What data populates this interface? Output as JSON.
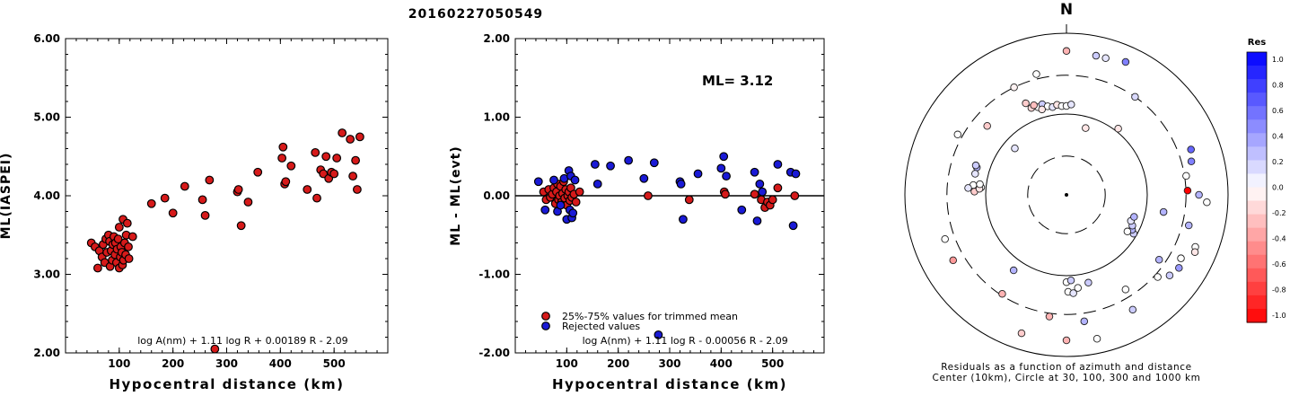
{
  "title": "20160227050549",
  "colors": {
    "accepted": "#d61a1a",
    "rejected": "#1a1ad6"
  },
  "chart_data": [
    {
      "type": "scatter",
      "ylabel": "ML(IASPEI)",
      "xlabel": "Hypocentral distance (km)",
      "xlim": [
        0,
        600
      ],
      "ylim": [
        2.0,
        6.0
      ],
      "xticks": [
        "100",
        "200",
        "300",
        "400",
        "500"
      ],
      "yticks": [
        "2.00",
        "3.00",
        "4.00",
        "5.00",
        "6.00"
      ],
      "formula": "log A(nm) + 1.11 log R + 0.00189 R - 2.09",
      "series": [
        {
          "color": "#d61a1a",
          "points": [
            [
              48,
              3.4
            ],
            [
              55,
              3.35
            ],
            [
              60,
              3.08
            ],
            [
              63,
              3.3
            ],
            [
              68,
              3.22
            ],
            [
              70,
              3.38
            ],
            [
              73,
              3.15
            ],
            [
              75,
              3.45
            ],
            [
              77,
              3.28
            ],
            [
              80,
              3.5
            ],
            [
              82,
              3.42
            ],
            [
              83,
              3.1
            ],
            [
              85,
              3.3
            ],
            [
              87,
              3.18
            ],
            [
              88,
              3.38
            ],
            [
              90,
              3.48
            ],
            [
              92,
              3.25
            ],
            [
              93,
              3.4
            ],
            [
              95,
              3.15
            ],
            [
              96,
              3.32
            ],
            [
              98,
              3.45
            ],
            [
              100,
              3.08
            ],
            [
              100,
              3.6
            ],
            [
              102,
              3.22
            ],
            [
              103,
              3.35
            ],
            [
              105,
              3.28
            ],
            [
              106,
              3.12
            ],
            [
              107,
              3.7
            ],
            [
              108,
              3.18
            ],
            [
              110,
              3.4
            ],
            [
              112,
              3.25
            ],
            [
              113,
              3.5
            ],
            [
              115,
              3.65
            ],
            [
              117,
              3.35
            ],
            [
              118,
              3.2
            ],
            [
              125,
              3.48
            ],
            [
              160,
              3.9
            ],
            [
              185,
              3.97
            ],
            [
              200,
              3.78
            ],
            [
              222,
              4.12
            ],
            [
              255,
              3.95
            ],
            [
              260,
              3.75
            ],
            [
              268,
              4.2
            ],
            [
              278,
              2.05
            ],
            [
              320,
              4.05
            ],
            [
              322,
              4.08
            ],
            [
              327,
              3.62
            ],
            [
              340,
              3.92
            ],
            [
              358,
              4.3
            ],
            [
              403,
              4.48
            ],
            [
              405,
              4.62
            ],
            [
              408,
              4.15
            ],
            [
              410,
              4.18
            ],
            [
              420,
              4.38
            ],
            [
              450,
              4.08
            ],
            [
              465,
              4.55
            ],
            [
              468,
              3.97
            ],
            [
              475,
              4.33
            ],
            [
              480,
              4.28
            ],
            [
              485,
              4.5
            ],
            [
              490,
              4.22
            ],
            [
              495,
              4.3
            ],
            [
              500,
              4.28
            ],
            [
              505,
              4.48
            ],
            [
              515,
              4.8
            ],
            [
              530,
              4.72
            ],
            [
              535,
              4.25
            ],
            [
              540,
              4.45
            ],
            [
              543,
              4.08
            ],
            [
              548,
              4.75
            ]
          ]
        }
      ]
    },
    {
      "type": "scatter",
      "ylabel": "ML - ML(evt)",
      "xlabel": "Hypocentral distance (km)",
      "xlim": [
        0,
        600
      ],
      "ylim": [
        -2.0,
        2.0
      ],
      "xticks": [
        "100",
        "200",
        "300",
        "400",
        "500"
      ],
      "yticks": [
        "-2.00",
        "-1.00",
        "0.00",
        "1.00",
        "2.00"
      ],
      "annotation": "ML= 3.12",
      "formula": "log A(nm) + 1.11 log R - 0.00056 R - 2.09",
      "legend": [
        "25%-75% values for trimmed mean",
        "Rejected values"
      ],
      "series": [
        {
          "name": "25%-75% values for trimmed mean",
          "color": "#d61a1a",
          "points": [
            [
              55,
              0.05
            ],
            [
              60,
              -0.05
            ],
            [
              65,
              0.08
            ],
            [
              68,
              -0.02
            ],
            [
              72,
              0.02
            ],
            [
              75,
              0.1
            ],
            [
              78,
              -0.1
            ],
            [
              80,
              0.05
            ],
            [
              82,
              0.15
            ],
            [
              84,
              -0.05
            ],
            [
              86,
              0.0
            ],
            [
              88,
              0.12
            ],
            [
              90,
              -0.08
            ],
            [
              92,
              0.03
            ],
            [
              94,
              0.18
            ],
            [
              96,
              -0.03
            ],
            [
              98,
              0.08
            ],
            [
              100,
              -0.12
            ],
            [
              102,
              0.0
            ],
            [
              104,
              0.05
            ],
            [
              106,
              -0.06
            ],
            [
              108,
              0.1
            ],
            [
              110,
              -0.02
            ],
            [
              114,
              0.02
            ],
            [
              118,
              -0.08
            ],
            [
              125,
              0.05
            ],
            [
              258,
              0.0
            ],
            [
              338,
              -0.05
            ],
            [
              406,
              0.05
            ],
            [
              408,
              0.02
            ],
            [
              465,
              0.02
            ],
            [
              478,
              -0.05
            ],
            [
              485,
              -0.15
            ],
            [
              490,
              -0.08
            ],
            [
              495,
              -0.12
            ],
            [
              500,
              -0.05
            ],
            [
              510,
              0.1
            ],
            [
              543,
              0.0
            ]
          ]
        },
        {
          "name": "Rejected values",
          "color": "#1a1ad6",
          "points": [
            [
              45,
              0.18
            ],
            [
              58,
              -0.18
            ],
            [
              75,
              0.2
            ],
            [
              82,
              -0.2
            ],
            [
              88,
              -0.12
            ],
            [
              95,
              0.22
            ],
            [
              100,
              -0.3
            ],
            [
              104,
              0.32
            ],
            [
              106,
              -0.18
            ],
            [
              108,
              0.25
            ],
            [
              110,
              -0.28
            ],
            [
              112,
              -0.22
            ],
            [
              116,
              0.2
            ],
            [
              155,
              0.4
            ],
            [
              160,
              0.15
            ],
            [
              185,
              0.38
            ],
            [
              220,
              0.45
            ],
            [
              250,
              0.22
            ],
            [
              270,
              0.42
            ],
            [
              278,
              -1.77
            ],
            [
              320,
              0.18
            ],
            [
              322,
              0.15
            ],
            [
              326,
              -0.3
            ],
            [
              355,
              0.28
            ],
            [
              400,
              0.35
            ],
            [
              405,
              0.5
            ],
            [
              410,
              0.25
            ],
            [
              440,
              -0.18
            ],
            [
              465,
              0.3
            ],
            [
              470,
              -0.32
            ],
            [
              475,
              0.15
            ],
            [
              480,
              0.05
            ],
            [
              510,
              0.4
            ],
            [
              535,
              0.3
            ],
            [
              540,
              -0.38
            ],
            [
              545,
              0.28
            ]
          ]
        }
      ]
    },
    {
      "type": "scatter",
      "subtype": "polar",
      "north_label": "N",
      "caption_line1": "Residuals as a function of azimuth and distance",
      "caption_line2": "Center (10km), Circle at 30, 100, 300 and 1000 km",
      "colorbar_title": "Res",
      "colorbar_ticks": [
        "1.0",
        "0.8",
        "0.6",
        "0.4",
        "0.2",
        "0.0",
        "-0.2",
        "-0.4",
        "-0.6",
        "-0.8",
        "-1.0"
      ],
      "stations": [
        {
          "az": 0,
          "r": 0.89,
          "res": -0.3
        },
        {
          "az": 12,
          "r": 0.88,
          "res": 0.2
        },
        {
          "az": 16,
          "r": 0.88,
          "res": 0.1
        },
        {
          "az": 24,
          "r": 0.9,
          "res": 0.5
        },
        {
          "az": -26,
          "r": 0.74,
          "res": -0.05
        },
        {
          "az": -14,
          "r": 0.77,
          "res": 0.0
        },
        {
          "az": -24,
          "r": 0.62,
          "res": -0.2
        },
        {
          "az": -22,
          "r": 0.58,
          "res": -0.15
        },
        {
          "az": -18,
          "r": 0.57,
          "res": 0.0
        },
        {
          "az": -15,
          "r": 0.58,
          "res": 0.2
        },
        {
          "az": -12,
          "r": 0.56,
          "res": 0.0
        },
        {
          "az": -9,
          "r": 0.55,
          "res": 0.1
        },
        {
          "az": -6,
          "r": 0.56,
          "res": -0.1
        },
        {
          "az": -3,
          "r": 0.55,
          "res": 0.0
        },
        {
          "az": 0,
          "r": 0.55,
          "res": 0.0
        },
        {
          "az": 3,
          "r": 0.56,
          "res": 0.1
        },
        {
          "az": -20,
          "r": 0.59,
          "res": -0.25
        },
        {
          "az": -16,
          "r": 0.55,
          "res": -0.1
        },
        {
          "az": 16,
          "r": 0.43,
          "res": -0.1
        },
        {
          "az": 38,
          "r": 0.52,
          "res": -0.1
        },
        {
          "az": 35,
          "r": 0.74,
          "res": 0.15
        },
        {
          "az": -61,
          "r": 0.77,
          "res": 0.0
        },
        {
          "az": -49,
          "r": 0.65,
          "res": -0.2
        },
        {
          "az": -48,
          "r": 0.43,
          "res": 0.1
        },
        {
          "az": -73,
          "r": 0.58,
          "res": 0.3
        },
        {
          "az": -72,
          "r": 0.59,
          "res": 0.2
        },
        {
          "az": -77,
          "r": 0.58,
          "res": 0.1
        },
        {
          "az": -84,
          "r": 0.58,
          "res": 0.0
        },
        {
          "az": -85,
          "r": 0.53,
          "res": 0.0
        },
        {
          "az": -86,
          "r": 0.61,
          "res": 0.1
        },
        {
          "az": -88,
          "r": 0.57,
          "res": -0.2
        },
        {
          "az": -86,
          "r": 0.54,
          "res": -0.1
        },
        {
          "az": -83,
          "r": 0.54,
          "res": 0.0
        },
        {
          "az": -110,
          "r": 0.8,
          "res": 0.0
        },
        {
          "az": -120,
          "r": 0.81,
          "res": -0.4
        },
        {
          "az": -147,
          "r": 0.73,
          "res": -0.3
        },
        {
          "az": 88,
          "r": 0.75,
          "res": -1.0
        },
        {
          "az": 81,
          "r": 0.75,
          "res": 0.0
        },
        {
          "az": 90,
          "r": 0.82,
          "res": 0.3
        },
        {
          "az": 93,
          "r": 0.87,
          "res": 0.0
        },
        {
          "az": 75,
          "r": 0.8,
          "res": 0.5
        },
        {
          "az": 70,
          "r": 0.82,
          "res": 0.6
        },
        {
          "az": 104,
          "r": 0.78,
          "res": 0.3
        },
        {
          "az": 112,
          "r": 0.86,
          "res": 0.0
        },
        {
          "az": 114,
          "r": 0.87,
          "res": -0.1
        },
        {
          "az": 123,
          "r": 0.83,
          "res": 0.4
        },
        {
          "az": 119,
          "r": 0.81,
          "res": 0.0
        },
        {
          "az": 128,
          "r": 0.81,
          "res": 0.2
        },
        {
          "az": 132,
          "r": 0.76,
          "res": 0.0
        },
        {
          "az": 125,
          "r": 0.7,
          "res": 0.3
        },
        {
          "az": 100,
          "r": 0.61,
          "res": 0.3
        },
        {
          "az": 120,
          "r": 0.48,
          "res": 0.2
        },
        {
          "az": 118,
          "r": 0.46,
          "res": 0.3
        },
        {
          "az": 121,
          "r": 0.44,
          "res": 0.0
        },
        {
          "az": 115,
          "r": 0.45,
          "res": 0.2
        },
        {
          "az": 112,
          "r": 0.43,
          "res": 0.1
        },
        {
          "az": 108,
          "r": 0.44,
          "res": 0.3
        },
        {
          "az": -180,
          "r": 0.54,
          "res": 0.0
        },
        {
          "az": 177,
          "r": 0.53,
          "res": 0.2
        },
        {
          "az": 173,
          "r": 0.58,
          "res": 0.0
        },
        {
          "az": 179,
          "r": 0.6,
          "res": 0.0
        },
        {
          "az": 176,
          "r": 0.61,
          "res": 0.1
        },
        {
          "az": 166,
          "r": 0.56,
          "res": 0.2
        },
        {
          "az": 148,
          "r": 0.69,
          "res": 0.0
        },
        {
          "az": -145,
          "r": 0.57,
          "res": 0.3
        },
        {
          "az": -172,
          "r": 0.76,
          "res": -0.3
        },
        {
          "az": -180,
          "r": 0.9,
          "res": -0.3
        },
        {
          "az": 172,
          "r": 0.79,
          "res": 0.3
        },
        {
          "az": 168,
          "r": 0.91,
          "res": 0.0
        },
        {
          "az": -162,
          "r": 0.9,
          "res": -0.2
        },
        {
          "az": 150,
          "r": 0.82,
          "res": 0.2
        }
      ]
    }
  ]
}
